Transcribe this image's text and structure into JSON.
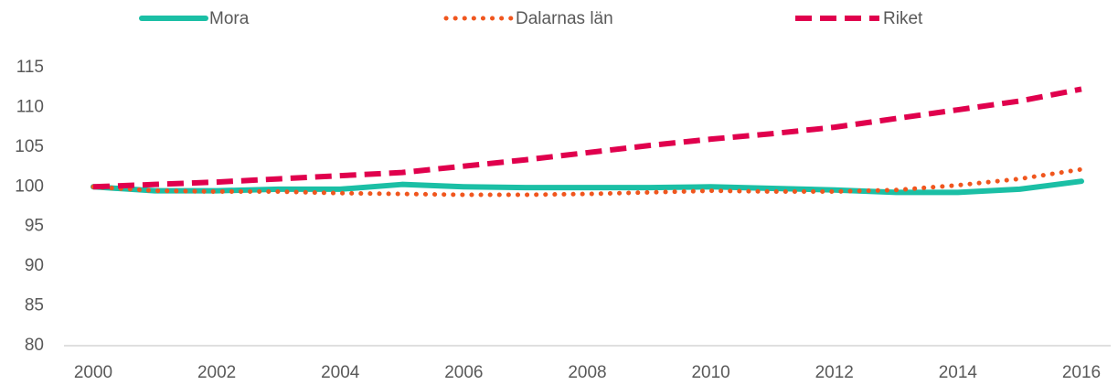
{
  "chart_data": {
    "type": "line",
    "x": [
      2000,
      2001,
      2002,
      2003,
      2004,
      2005,
      2006,
      2007,
      2008,
      2009,
      2010,
      2011,
      2012,
      2013,
      2014,
      2015,
      2016
    ],
    "series": [
      {
        "name": "Mora",
        "color": "#1bbfa5",
        "style": "solid",
        "values": [
          100,
          99.5,
          99.5,
          99.7,
          99.7,
          100.3,
          100,
          99.9,
          99.9,
          99.9,
          100,
          99.8,
          99.6,
          99.3,
          99.3,
          99.7,
          100.7
        ]
      },
      {
        "name": "Dalarnas län",
        "color": "#f0561e",
        "style": "dotted",
        "values": [
          100,
          99.5,
          99.4,
          99.4,
          99.2,
          99.1,
          99.0,
          99.0,
          99.1,
          99.3,
          99.5,
          99.4,
          99.4,
          99.6,
          100.2,
          101.0,
          102.2
        ]
      },
      {
        "name": "Riket",
        "color": "#e0004d",
        "style": "dashed",
        "values": [
          100,
          100.3,
          100.6,
          101.0,
          101.4,
          101.8,
          102.6,
          103.4,
          104.3,
          105.2,
          106.0,
          106.7,
          107.5,
          108.6,
          109.7,
          110.8,
          112.3
        ]
      }
    ],
    "xlim": [
      2000,
      2016
    ],
    "xticks": [
      2000,
      2002,
      2004,
      2006,
      2008,
      2010,
      2012,
      2014,
      2016
    ],
    "ylim": [
      80,
      115
    ],
    "yticks": [
      80,
      85,
      90,
      95,
      100,
      105,
      110,
      115
    ],
    "grid": false,
    "legend": "top"
  }
}
